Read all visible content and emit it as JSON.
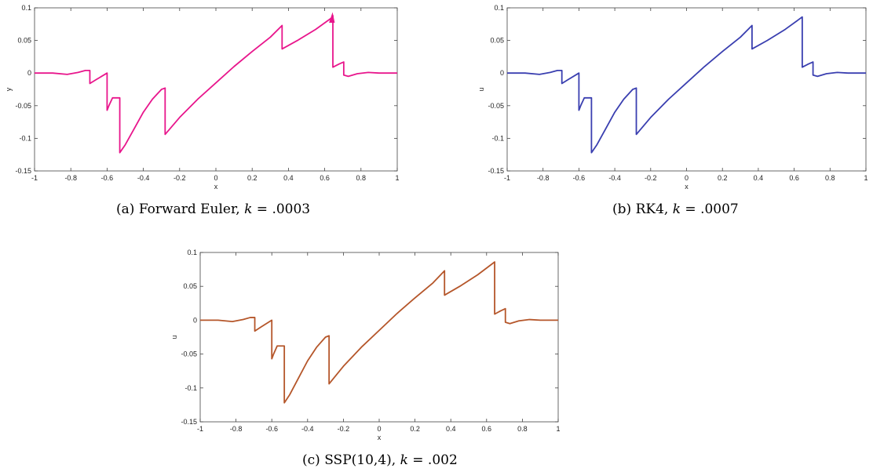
{
  "chart_data": [
    {
      "type": "line",
      "caption": {
        "tag": "(a)",
        "method": "Forward Euler,",
        "var": "k",
        "eq": "= .0003"
      },
      "xlabel": "x",
      "ylabel": "y",
      "xlim": [
        -1,
        1
      ],
      "ylim": [
        -0.15,
        0.1
      ],
      "xticks": [
        "-1",
        "-0.8",
        "-0.6",
        "-0.4",
        "-0.2",
        "0",
        "0.2",
        "0.4",
        "0.6",
        "0.8",
        "1"
      ],
      "yticks": [
        "-0.15",
        "-0.1",
        "-0.05",
        "0",
        "0.05",
        "0.1"
      ],
      "color": "#e8168c",
      "grid": false,
      "overshoot": true,
      "x": [
        -1.0,
        -0.9,
        -0.82,
        -0.76,
        -0.72,
        -0.695,
        -0.695,
        -0.66,
        -0.6,
        -0.6,
        -0.59,
        -0.57,
        -0.53,
        -0.53,
        -0.5,
        -0.45,
        -0.4,
        -0.35,
        -0.3,
        -0.28,
        -0.28,
        -0.2,
        -0.1,
        0.0,
        0.1,
        0.2,
        0.3,
        0.365,
        0.365,
        0.45,
        0.55,
        0.64,
        0.645,
        0.645,
        0.68,
        0.705,
        0.705,
        0.73,
        0.78,
        0.84,
        0.9,
        1.0
      ],
      "y": [
        0.0,
        0.0,
        -0.002,
        0.001,
        0.004,
        0.004,
        -0.016,
        -0.01,
        0.0,
        -0.057,
        -0.05,
        -0.038,
        -0.038,
        -0.122,
        -0.11,
        -0.085,
        -0.06,
        -0.04,
        -0.025,
        -0.023,
        -0.094,
        -0.068,
        -0.04,
        -0.015,
        0.01,
        0.033,
        0.055,
        0.073,
        0.037,
        0.05,
        0.067,
        0.085,
        0.088,
        0.009,
        0.014,
        0.017,
        -0.003,
        -0.005,
        -0.001,
        0.001,
        0.0,
        0.0
      ]
    },
    {
      "type": "line",
      "caption": {
        "tag": "(b)",
        "method": "RK4,",
        "var": "k",
        "eq": "= .0007"
      },
      "xlabel": "x",
      "ylabel": "u",
      "xlim": [
        -1,
        1
      ],
      "ylim": [
        -0.15,
        0.1
      ],
      "xticks": [
        "-1",
        "-0.8",
        "-0.6",
        "-0.4",
        "-0.2",
        "0",
        "0.2",
        "0.4",
        "0.6",
        "0.8",
        "1"
      ],
      "yticks": [
        "-0.15",
        "-0.1",
        "-0.05",
        "0",
        "0.05",
        "0.1"
      ],
      "color": "#3a3fb0",
      "grid": false,
      "x": [
        -1.0,
        -0.9,
        -0.82,
        -0.76,
        -0.72,
        -0.695,
        -0.695,
        -0.66,
        -0.6,
        -0.6,
        -0.59,
        -0.57,
        -0.53,
        -0.53,
        -0.5,
        -0.45,
        -0.4,
        -0.35,
        -0.3,
        -0.28,
        -0.28,
        -0.2,
        -0.1,
        0.0,
        0.1,
        0.2,
        0.3,
        0.365,
        0.365,
        0.45,
        0.55,
        0.645,
        0.645,
        0.68,
        0.705,
        0.705,
        0.73,
        0.78,
        0.84,
        0.9,
        1.0
      ],
      "y": [
        0.0,
        0.0,
        -0.002,
        0.001,
        0.004,
        0.004,
        -0.016,
        -0.01,
        0.0,
        -0.057,
        -0.05,
        -0.038,
        -0.038,
        -0.122,
        -0.11,
        -0.085,
        -0.06,
        -0.04,
        -0.025,
        -0.023,
        -0.094,
        -0.068,
        -0.04,
        -0.015,
        0.01,
        0.033,
        0.055,
        0.073,
        0.037,
        0.05,
        0.067,
        0.086,
        0.009,
        0.014,
        0.017,
        -0.003,
        -0.005,
        -0.001,
        0.001,
        0.0,
        0.0
      ]
    },
    {
      "type": "line",
      "caption": {
        "tag": "(c)",
        "method": "SSP(10,4),",
        "var": "k",
        "eq": "= .002"
      },
      "xlabel": "x",
      "ylabel": "u",
      "xlim": [
        -1,
        1
      ],
      "ylim": [
        -0.15,
        0.1
      ],
      "xticks": [
        "-1",
        "-0.8",
        "-0.6",
        "-0.4",
        "-0.2",
        "0",
        "0.2",
        "0.4",
        "0.6",
        "0.8",
        "1"
      ],
      "yticks": [
        "-0.15",
        "-0.1",
        "-0.05",
        "0",
        "0.05",
        "0.1"
      ],
      "color": "#b5562a",
      "grid": false,
      "x": [
        -1.0,
        -0.9,
        -0.82,
        -0.76,
        -0.72,
        -0.695,
        -0.695,
        -0.66,
        -0.6,
        -0.6,
        -0.59,
        -0.57,
        -0.53,
        -0.53,
        -0.5,
        -0.45,
        -0.4,
        -0.35,
        -0.3,
        -0.28,
        -0.28,
        -0.2,
        -0.1,
        0.0,
        0.1,
        0.2,
        0.3,
        0.365,
        0.365,
        0.45,
        0.55,
        0.645,
        0.645,
        0.68,
        0.705,
        0.705,
        0.73,
        0.78,
        0.84,
        0.9,
        1.0
      ],
      "y": [
        0.0,
        0.0,
        -0.002,
        0.001,
        0.004,
        0.004,
        -0.016,
        -0.01,
        0.0,
        -0.057,
        -0.05,
        -0.038,
        -0.038,
        -0.122,
        -0.11,
        -0.085,
        -0.06,
        -0.04,
        -0.025,
        -0.023,
        -0.094,
        -0.068,
        -0.04,
        -0.015,
        0.01,
        0.033,
        0.055,
        0.073,
        0.037,
        0.05,
        0.067,
        0.086,
        0.009,
        0.014,
        0.017,
        -0.003,
        -0.005,
        -0.001,
        0.001,
        0.0,
        0.0
      ]
    }
  ]
}
